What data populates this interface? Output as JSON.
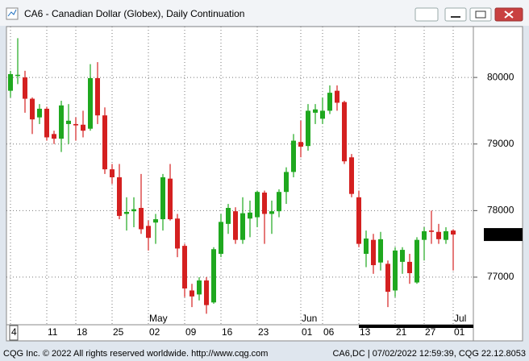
{
  "chart_data": {
    "type": "candlestick",
    "title": "CA6 - Canadian Dollar (Globex), Daily Continuation",
    "categories": [
      "4",
      null,
      null,
      null,
      null,
      "11",
      null,
      null,
      null,
      "18",
      null,
      null,
      null,
      null,
      "25",
      null,
      null,
      null,
      null,
      "02",
      null,
      null,
      null,
      null,
      "09",
      null,
      null,
      null,
      null,
      "16",
      null,
      null,
      null,
      null,
      "23",
      null,
      null,
      null,
      null,
      null,
      "01",
      null,
      null,
      "06",
      null,
      null,
      null,
      null,
      "13",
      null,
      null,
      null,
      null,
      "21",
      null,
      null,
      null,
      "27",
      null,
      null,
      null,
      "01"
    ],
    "months": [
      {
        "label": "May",
        "at": 19
      },
      {
        "label": "Jun",
        "at": 40
      },
      {
        "label": "Jul",
        "at": 61
      }
    ],
    "open": [
      79800,
      80030,
      80000,
      79680,
      79400,
      79530,
      79150,
      79080,
      79300,
      79300,
      79290,
      79230,
      79990,
      79430,
      78620,
      78500,
      77950,
      77990,
      78040,
      77770,
      77820,
      77870,
      78480,
      77880,
      77470,
      76800,
      76740,
      76950,
      76620,
      77350,
      77800,
      77990,
      77560,
      77880,
      77900,
      78270,
      77950,
      77990,
      78280,
      78580,
      79030,
      78970,
      79470,
      79380,
      79500,
      79800,
      79630,
      78800,
      78200,
      77350,
      77560,
      77220,
      77200,
      76800,
      77230,
      77230,
      76920,
      77560,
      77700,
      77680,
      77560,
      77700
    ],
    "high": [
      80100,
      80590,
      80100,
      79700,
      79600,
      79560,
      79200,
      79650,
      79600,
      79400,
      79500,
      80200,
      80230,
      79550,
      78700,
      78700,
      78200,
      78200,
      78550,
      77850,
      77950,
      78550,
      78700,
      77950,
      77500,
      76900,
      77000,
      77000,
      77450,
      77950,
      78100,
      78050,
      78200,
      78150,
      78300,
      78300,
      78150,
      78320,
      78650,
      79150,
      79350,
      79600,
      79600,
      79700,
      79880,
      79880,
      79650,
      78850,
      78300,
      77700,
      77650,
      77680,
      77250,
      77450,
      77450,
      77350,
      77600,
      77750,
      78000,
      77800,
      77750,
      77720
    ],
    "low": [
      79700,
      79900,
      79470,
      79150,
      79300,
      79050,
      79000,
      78880,
      79000,
      79050,
      79100,
      79200,
      79300,
      78550,
      78400,
      77870,
      77700,
      77750,
      77650,
      77400,
      77500,
      77700,
      77850,
      77300,
      76700,
      76550,
      76650,
      76450,
      76600,
      77300,
      77650,
      77500,
      77500,
      77600,
      77750,
      77500,
      77650,
      77900,
      78100,
      78500,
      78800,
      78900,
      79300,
      79300,
      79450,
      79500,
      78700,
      78200,
      77450,
      77150,
      77050,
      77100,
      76550,
      76700,
      77050,
      76900,
      76900,
      77250,
      77500,
      77500,
      77500,
      77100
    ],
    "close": [
      80050,
      80040,
      79680,
      79370,
      79530,
      79100,
      79080,
      79580,
      79350,
      79280,
      79200,
      79990,
      79430,
      78620,
      78500,
      77920,
      77980,
      78020,
      77720,
      77590,
      77870,
      78500,
      77870,
      77430,
      76830,
      76710,
      76950,
      76580,
      77420,
      77830,
      78040,
      77560,
      77960,
      77970,
      78280,
      77950,
      77990,
      78280,
      78580,
      79050,
      78960,
      79500,
      79520,
      79500,
      79770,
      79620,
      78740,
      78250,
      77500,
      77580,
      77180,
      77570,
      76780,
      77400,
      77410,
      77060,
      77560,
      77690,
      77680,
      77570,
      77690,
      77640
    ],
    "up_color": "#1fa81f",
    "down_color": "#d42020",
    "ylim": [
      76285,
      80764
    ],
    "yticks": [
      77000,
      78000,
      79000,
      80000
    ],
    "grid": true,
    "last_value": 77640,
    "footer_left": "CQG Inc. © 2022 All rights reserved worldwide. http://www.cqg.com",
    "footer_right": "CA6,DC | 07/02/2022 12:59:39, CQG 22.12.8053"
  }
}
